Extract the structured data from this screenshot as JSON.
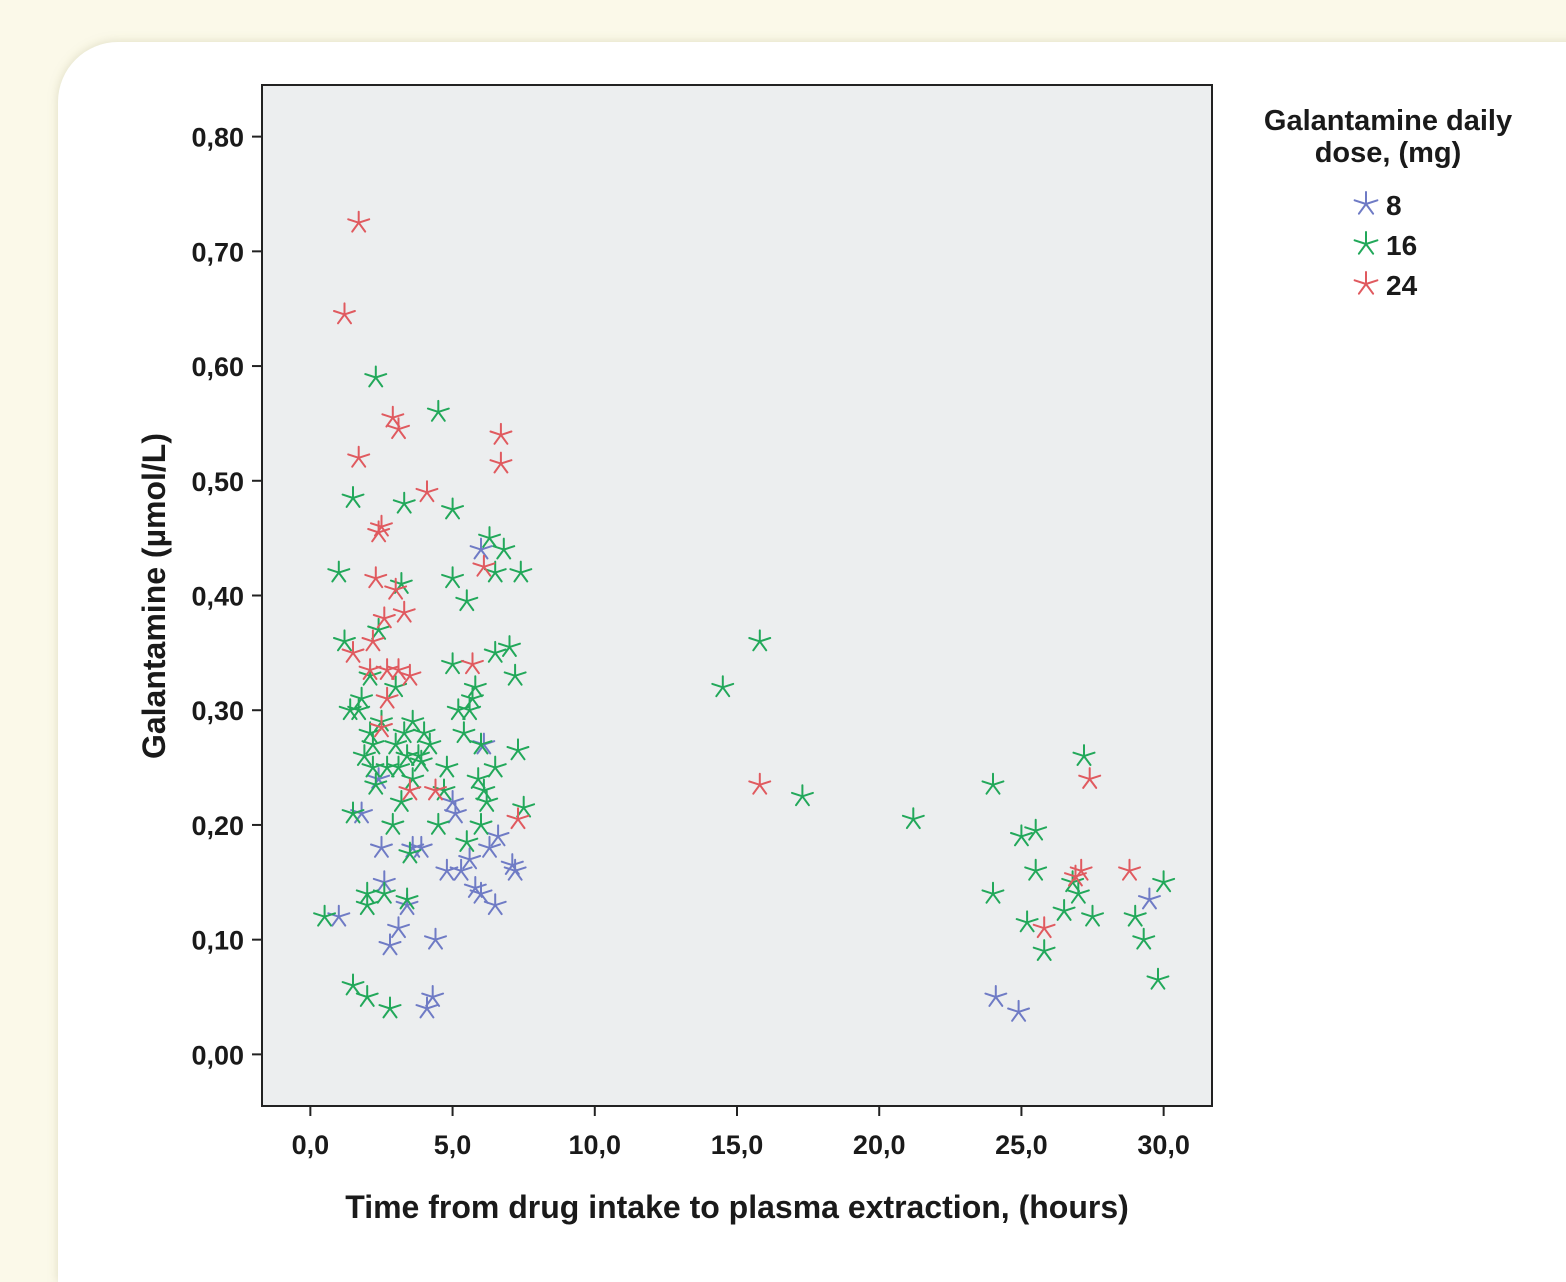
{
  "chart_data": {
    "type": "scatter",
    "xlabel": "Time from drug intake to plasma extraction, (hours)",
    "ylabel": "Galantamine (µmol/L)",
    "xlim": [
      -1.7,
      31.7
    ],
    "ylim": [
      -0.045,
      0.845
    ],
    "x_ticks": [
      0,
      5,
      10,
      15,
      20,
      25,
      30
    ],
    "x_tick_labels": [
      "0,0",
      "5,0",
      "10,0",
      "15,0",
      "20,0",
      "25,0",
      "30,0"
    ],
    "y_ticks": [
      0,
      0.1,
      0.2,
      0.3,
      0.4,
      0.5,
      0.6,
      0.7,
      0.8
    ],
    "y_tick_labels": [
      "0,00",
      "0,10",
      "0,20",
      "0,30",
      "0,40",
      "0,50",
      "0,60",
      "0,70",
      "0,80"
    ],
    "grid": false,
    "marker": "asterisk",
    "legend": {
      "title_lines": [
        "Galantamine daily",
        "dose, (mg)"
      ],
      "placement": "top-right-outside"
    },
    "series": [
      {
        "name": "8",
        "color": "#6f7bc5",
        "points": [
          [
            1.0,
            0.12
          ],
          [
            1.8,
            0.21
          ],
          [
            2.4,
            0.24
          ],
          [
            2.5,
            0.18
          ],
          [
            2.6,
            0.15
          ],
          [
            2.8,
            0.095
          ],
          [
            3.1,
            0.11
          ],
          [
            3.4,
            0.13
          ],
          [
            3.6,
            0.18
          ],
          [
            3.9,
            0.18
          ],
          [
            4.1,
            0.04
          ],
          [
            4.3,
            0.05
          ],
          [
            4.4,
            0.1
          ],
          [
            4.8,
            0.16
          ],
          [
            5.0,
            0.22
          ],
          [
            5.1,
            0.21
          ],
          [
            5.3,
            0.16
          ],
          [
            5.6,
            0.17
          ],
          [
            5.8,
            0.145
          ],
          [
            6.0,
            0.14
          ],
          [
            6.1,
            0.27
          ],
          [
            6.3,
            0.18
          ],
          [
            6.5,
            0.13
          ],
          [
            6.6,
            0.19
          ],
          [
            6.0,
            0.44
          ],
          [
            7.1,
            0.165
          ],
          [
            7.2,
            0.16
          ],
          [
            24.1,
            0.05
          ],
          [
            24.9,
            0.037
          ],
          [
            29.5,
            0.135
          ]
        ]
      },
      {
        "name": "16",
        "color": "#22a85a",
        "points": [
          [
            0.5,
            0.12
          ],
          [
            1.0,
            0.42
          ],
          [
            1.2,
            0.36
          ],
          [
            1.4,
            0.3
          ],
          [
            1.5,
            0.21
          ],
          [
            1.5,
            0.06
          ],
          [
            1.5,
            0.485
          ],
          [
            1.7,
            0.3
          ],
          [
            1.8,
            0.31
          ],
          [
            1.9,
            0.26
          ],
          [
            2.0,
            0.05
          ],
          [
            2.0,
            0.13
          ],
          [
            2.0,
            0.14
          ],
          [
            2.1,
            0.28
          ],
          [
            2.1,
            0.33
          ],
          [
            2.2,
            0.25
          ],
          [
            2.2,
            0.27
          ],
          [
            2.3,
            0.235
          ],
          [
            2.3,
            0.59
          ],
          [
            2.4,
            0.37
          ],
          [
            2.5,
            0.29
          ],
          [
            2.6,
            0.14
          ],
          [
            2.7,
            0.25
          ],
          [
            2.8,
            0.04
          ],
          [
            2.9,
            0.2
          ],
          [
            3.0,
            0.32
          ],
          [
            3.0,
            0.27
          ],
          [
            3.1,
            0.25
          ],
          [
            3.2,
            0.22
          ],
          [
            3.2,
            0.41
          ],
          [
            3.3,
            0.28
          ],
          [
            3.3,
            0.48
          ],
          [
            3.4,
            0.135
          ],
          [
            3.4,
            0.26
          ],
          [
            3.5,
            0.175
          ],
          [
            3.6,
            0.29
          ],
          [
            3.6,
            0.24
          ],
          [
            3.8,
            0.26
          ],
          [
            3.9,
            0.255
          ],
          [
            4.0,
            0.28
          ],
          [
            4.2,
            0.27
          ],
          [
            4.5,
            0.56
          ],
          [
            4.5,
            0.2
          ],
          [
            4.7,
            0.23
          ],
          [
            4.8,
            0.25
          ],
          [
            5.0,
            0.34
          ],
          [
            5.0,
            0.415
          ],
          [
            5.0,
            0.475
          ],
          [
            5.2,
            0.3
          ],
          [
            5.4,
            0.28
          ],
          [
            5.5,
            0.395
          ],
          [
            5.5,
            0.185
          ],
          [
            5.6,
            0.3
          ],
          [
            5.7,
            0.31
          ],
          [
            5.8,
            0.32
          ],
          [
            5.9,
            0.24
          ],
          [
            6.0,
            0.27
          ],
          [
            6.0,
            0.2
          ],
          [
            6.1,
            0.23
          ],
          [
            6.2,
            0.22
          ],
          [
            6.3,
            0.45
          ],
          [
            6.5,
            0.25
          ],
          [
            6.5,
            0.35
          ],
          [
            6.5,
            0.42
          ],
          [
            6.8,
            0.44
          ],
          [
            7.0,
            0.355
          ],
          [
            7.2,
            0.33
          ],
          [
            7.3,
            0.265
          ],
          [
            7.4,
            0.42
          ],
          [
            7.5,
            0.215
          ],
          [
            14.5,
            0.32
          ],
          [
            15.8,
            0.36
          ],
          [
            17.3,
            0.225
          ],
          [
            21.2,
            0.205
          ],
          [
            24.0,
            0.235
          ],
          [
            24.0,
            0.14
          ],
          [
            25.0,
            0.19
          ],
          [
            25.2,
            0.115
          ],
          [
            25.5,
            0.195
          ],
          [
            25.5,
            0.16
          ],
          [
            25.8,
            0.09
          ],
          [
            26.5,
            0.125
          ],
          [
            26.8,
            0.15
          ],
          [
            27.0,
            0.14
          ],
          [
            27.2,
            0.26
          ],
          [
            27.5,
            0.12
          ],
          [
            29.0,
            0.12
          ],
          [
            29.3,
            0.1
          ],
          [
            29.8,
            0.065
          ],
          [
            30.0,
            0.15
          ]
        ]
      },
      {
        "name": "24",
        "color": "#e05a5f",
        "points": [
          [
            1.2,
            0.645
          ],
          [
            1.5,
            0.35
          ],
          [
            1.7,
            0.725
          ],
          [
            1.7,
            0.52
          ],
          [
            2.1,
            0.335
          ],
          [
            2.2,
            0.36
          ],
          [
            2.3,
            0.415
          ],
          [
            2.4,
            0.455
          ],
          [
            2.5,
            0.46
          ],
          [
            2.5,
            0.285
          ],
          [
            2.6,
            0.38
          ],
          [
            2.7,
            0.335
          ],
          [
            2.7,
            0.31
          ],
          [
            2.9,
            0.555
          ],
          [
            3.0,
            0.405
          ],
          [
            3.1,
            0.335
          ],
          [
            3.1,
            0.545
          ],
          [
            3.3,
            0.385
          ],
          [
            3.5,
            0.33
          ],
          [
            3.5,
            0.23
          ],
          [
            4.1,
            0.49
          ],
          [
            4.4,
            0.23
          ],
          [
            5.7,
            0.34
          ],
          [
            6.1,
            0.425
          ],
          [
            6.7,
            0.54
          ],
          [
            6.7,
            0.515
          ],
          [
            7.3,
            0.205
          ],
          [
            15.8,
            0.235
          ],
          [
            25.8,
            0.11
          ],
          [
            26.9,
            0.155
          ],
          [
            27.1,
            0.16
          ],
          [
            27.4,
            0.24
          ],
          [
            28.8,
            0.16
          ]
        ]
      }
    ]
  }
}
